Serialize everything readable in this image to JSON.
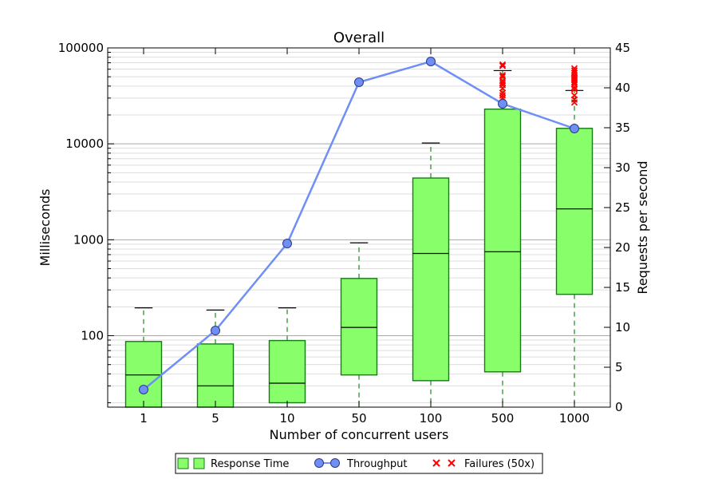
{
  "chart_data": {
    "type": "box",
    "title": "Overall",
    "xlabel": "Number of concurrent users",
    "ylabel_left": "Milliseconds",
    "ylabel_right": "Requests per second",
    "categories": [
      "1",
      "5",
      "10",
      "50",
      "100",
      "500",
      "1000"
    ],
    "left_axis": {
      "scale": "log",
      "ylim": [
        18,
        100000
      ],
      "tick_values": [
        100,
        1000,
        10000,
        100000
      ],
      "tick_labels": [
        "100",
        "1000",
        "10000",
        "100000"
      ]
    },
    "right_axis": {
      "scale": "linear",
      "ylim": [
        0,
        45
      ],
      "tick_values": [
        0,
        5,
        10,
        15,
        20,
        25,
        30,
        35,
        40,
        45
      ],
      "tick_labels": [
        "0",
        "5",
        "10",
        "15",
        "20",
        "25",
        "30",
        "35",
        "40",
        "45"
      ]
    },
    "response_time_boxes": [
      {
        "category": "1",
        "whisker_low": 18,
        "q1": 18,
        "median": 39,
        "q3": 87,
        "whisker_high": 195
      },
      {
        "category": "5",
        "whisker_low": 18,
        "q1": 18,
        "median": 30,
        "q3": 82,
        "whisker_high": 185
      },
      {
        "category": "10",
        "whisker_low": 18,
        "q1": 20,
        "median": 32,
        "q3": 89,
        "whisker_high": 195
      },
      {
        "category": "50",
        "whisker_low": 18,
        "q1": 39,
        "median": 122,
        "q3": 395,
        "whisker_high": 930
      },
      {
        "category": "100",
        "whisker_low": 18,
        "q1": 34,
        "median": 720,
        "q3": 4400,
        "whisker_high": 10200
      },
      {
        "category": "500",
        "whisker_low": 18,
        "q1": 42,
        "median": 750,
        "q3": 23000,
        "whisker_high": 58000
      },
      {
        "category": "1000",
        "whisker_low": 18,
        "q1": 270,
        "median": 2100,
        "q3": 14500,
        "whisker_high": 36000
      }
    ],
    "failures": [
      {
        "category": "500",
        "values": [
          27000,
          30000,
          32000,
          34000,
          38000,
          41000,
          43000,
          45000,
          50000,
          52000,
          65000,
          67000
        ]
      },
      {
        "category": "1000",
        "values": [
          27000,
          29000,
          32000,
          37000,
          39000,
          42000,
          44000,
          46000,
          48000,
          50000,
          52000,
          55000,
          58000,
          61000
        ]
      }
    ],
    "throughput": {
      "name": "Throughput",
      "values": [
        2.2,
        9.6,
        20.5,
        40.7,
        43.3,
        38.0,
        34.9
      ]
    },
    "legend": {
      "placement": "bottom-center",
      "entries": [
        "Response Time",
        "Throughput",
        "Failures (50x)"
      ]
    },
    "colors": {
      "box_fill": "#88ff6a",
      "box_edge": "#1a7a1a",
      "whisker": "#1a8a1a",
      "throughput_line": "#6f8ff5",
      "throughput_marker": "#6f8ff5",
      "failure_marker": "#ff0000",
      "grid": "#bbbbbb"
    }
  }
}
